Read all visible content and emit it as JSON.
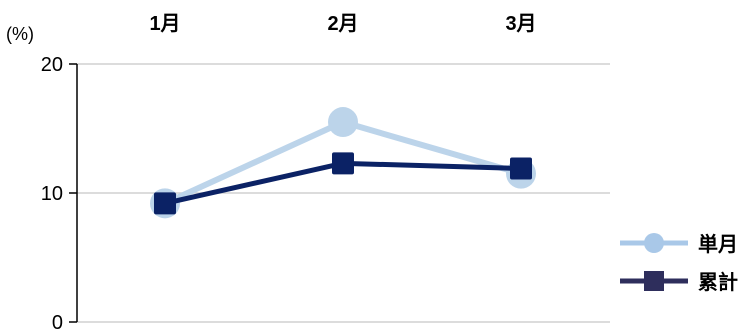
{
  "chart_data": {
    "type": "line",
    "title": "",
    "xlabel": "",
    "ylabel": "",
    "unit_label": "(%)",
    "categories": [
      "1月",
      "2月",
      "3月"
    ],
    "ylim": [
      0,
      20
    ],
    "yticks": [
      "0",
      "10",
      "20"
    ],
    "grid": true,
    "legend_position": "right",
    "series": [
      {
        "name": "単月",
        "values": [
          9.2,
          15.5,
          11.5
        ],
        "color": "#bcd4ea",
        "marker": "circle"
      },
      {
        "name": "累計",
        "values": [
          9.2,
          12.3,
          11.9
        ],
        "color": "#0b2265",
        "marker": "square"
      }
    ],
    "legend_marker_colors": [
      "#a9c8e8",
      "#2e2e5c"
    ]
  }
}
